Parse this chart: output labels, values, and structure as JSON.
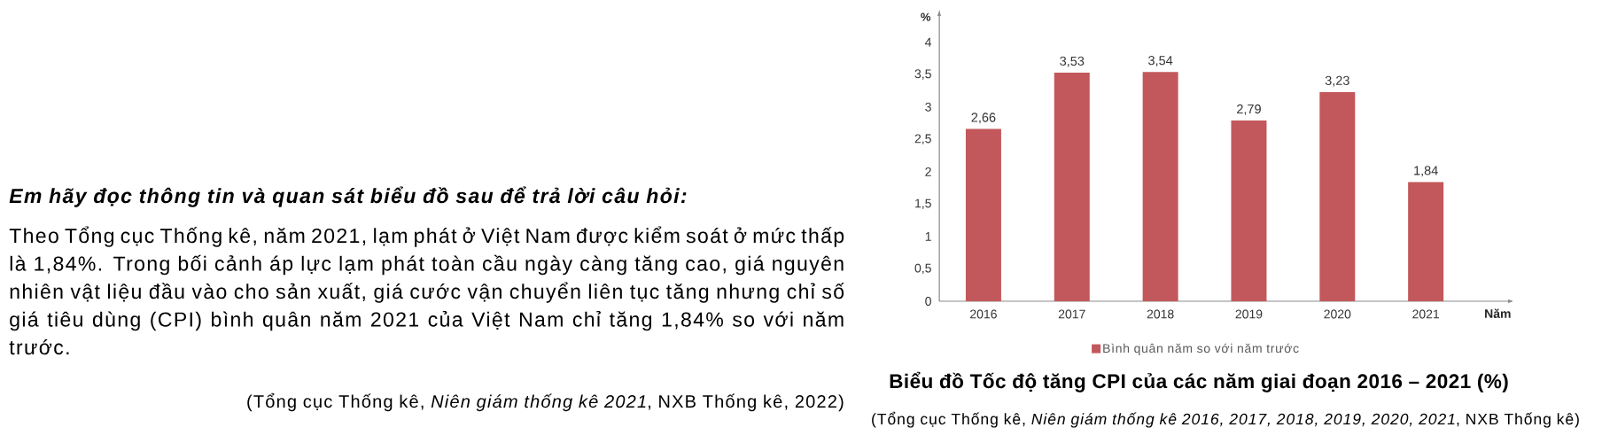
{
  "chart_data": {
    "type": "bar",
    "title": "Biểu đồ Tốc độ tăng CPI của các năm giai đoạn 2016 – 2021 (%)",
    "xlabel": "Năm",
    "ylabel": "%",
    "categories": [
      "2016",
      "2017",
      "2018",
      "2019",
      "2020",
      "2021"
    ],
    "series": [
      {
        "name": "Bình quân năm so với năm trước",
        "color": "#c2585b",
        "values": [
          2.66,
          3.53,
          3.54,
          2.79,
          3.23,
          1.84
        ],
        "value_labels": [
          "2,66",
          "3,53",
          "3,54",
          "2,79",
          "3,23",
          "1,84"
        ]
      }
    ],
    "ylim": [
      0,
      4.5
    ],
    "yticks": [
      0,
      {
        "value": 0.5,
        "label": "0,5"
      },
      1,
      {
        "value": 1.5,
        "label": "1,5"
      },
      2,
      {
        "value": 2.5,
        "label": "2,5"
      },
      3,
      {
        "value": 3.5,
        "label": "3,5"
      },
      4
    ],
    "legend": "bottom",
    "annotations": [
      "Em hãy đọc thông tin và quan sát biểu đồ sau để trả lời câu hỏi:",
      "Theo Tổng cục Thống kê, năm 2021, lạm phát ở Việt Nam được kiểm soát ở mức thấp là 1,84%. Trong bối cảnh áp lực lạm phát toàn cầu ngày càng tăng cao, giá nguyên nhiên vật liệu đầu vào cho sản xuất, giá cước vận chuyển liên tục tăng nhưng chỉ số giá tiêu dùng (CPI) bình quân năm 2021 của Việt Nam chỉ tăng 1,84% so với năm trước.",
      "(Tổng cục Thống kê, *Niên giám thống kê 2021*, NXB Thống kê, 2022)",
      "(Tổng cục Thống kê, *Niên giám thống kê 2016, 2017, 2018, 2019, 2020, 2021*, NXB Thống kê)"
    ]
  }
}
